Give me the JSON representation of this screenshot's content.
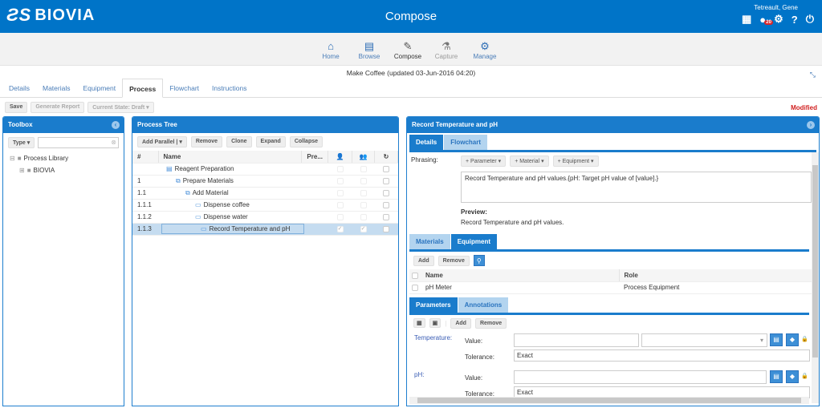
{
  "header": {
    "brand": "BIOVIA",
    "title": "Compose",
    "user": "Tetreault, Gene",
    "notification_count": "20"
  },
  "nav": {
    "items": [
      {
        "label": "Home",
        "icon": "home-icon"
      },
      {
        "label": "Browse",
        "icon": "book-icon"
      },
      {
        "label": "Compose",
        "icon": "edit-icon"
      },
      {
        "label": "Capture",
        "icon": "flask-icon"
      },
      {
        "label": "Manage",
        "icon": "gears-icon"
      }
    ]
  },
  "document_title": "Make Coffee (updated 03-Jun-2016 04:20)",
  "tabs": [
    "Details",
    "Materials",
    "Equipment",
    "Process",
    "Flowchart",
    "Instructions"
  ],
  "toolbar": {
    "save": "Save",
    "generate_report": "Generate Report",
    "current_state": "Current State: Draft",
    "status": "Modified"
  },
  "toolbox": {
    "title": "Toolbox",
    "type_filter": "Type",
    "search_value": "",
    "tree": [
      {
        "label": "Process Library"
      },
      {
        "label": "BIOVIA"
      }
    ]
  },
  "process_tree": {
    "title": "Process Tree",
    "buttons": {
      "add_parallel": "Add Parallel",
      "remove": "Remove",
      "clone": "Clone",
      "expand": "Expand",
      "collapse": "Collapse"
    },
    "columns": {
      "num": "#",
      "name": "Name",
      "pre": "Pre..."
    },
    "rows": [
      {
        "num": "",
        "name": "Reagent Preparation",
        "c1": false,
        "c2": false,
        "c3": false
      },
      {
        "num": "1",
        "name": "Prepare Materials",
        "c1": false,
        "c2": false,
        "c3": false
      },
      {
        "num": "1.1",
        "name": "Add Material",
        "c1": false,
        "c2": false,
        "c3": false
      },
      {
        "num": "1.1.1",
        "name": "Dispense coffee",
        "c1": false,
        "c2": false,
        "c3": false
      },
      {
        "num": "1.1.2",
        "name": "Dispense water",
        "c1": false,
        "c2": false,
        "c3": false
      },
      {
        "num": "1.1.3",
        "name": "Record Temperature and pH",
        "c1": true,
        "c2": true,
        "c3": false,
        "selected": true
      }
    ]
  },
  "detail": {
    "title": "Record Temperature and pH",
    "tabs": [
      "Details",
      "Flowchart"
    ],
    "phrasing_label": "Phrasing:",
    "phrasing_buttons": [
      "+ Parameter",
      "+ Material",
      "+ Equipment"
    ],
    "phrasing_text": "Record Temperature and pH values.{pH: Target pH value of [value].}",
    "preview_label": "Preview:",
    "preview_text": "Record Temperature and pH values.",
    "res_tabs": [
      "Materials",
      "Equipment"
    ],
    "res_buttons": {
      "add": "Add",
      "remove": "Remove"
    },
    "equipment_columns": {
      "name": "Name",
      "role": "Role"
    },
    "equipment_rows": [
      {
        "name": "pH Meter",
        "role": "Process Equipment"
      }
    ],
    "param_tabs": [
      "Parameters",
      "Annotations"
    ],
    "param_buttons": {
      "add": "Add",
      "remove": "Remove"
    },
    "parameters": [
      {
        "name": "Temperature:",
        "value_label": "Value:",
        "value": "",
        "unit": "",
        "tolerance_label": "Tolerance:",
        "tolerance": "Exact"
      },
      {
        "name": "pH:",
        "value_label": "Value:",
        "value": "",
        "tolerance_label": "Tolerance:",
        "tolerance": "Exact"
      }
    ]
  },
  "colors": {
    "header": "#0074c8",
    "panel_header": "#1a7ccc",
    "modified": "#d01e1e",
    "selected_row": "#c5dcf0"
  }
}
